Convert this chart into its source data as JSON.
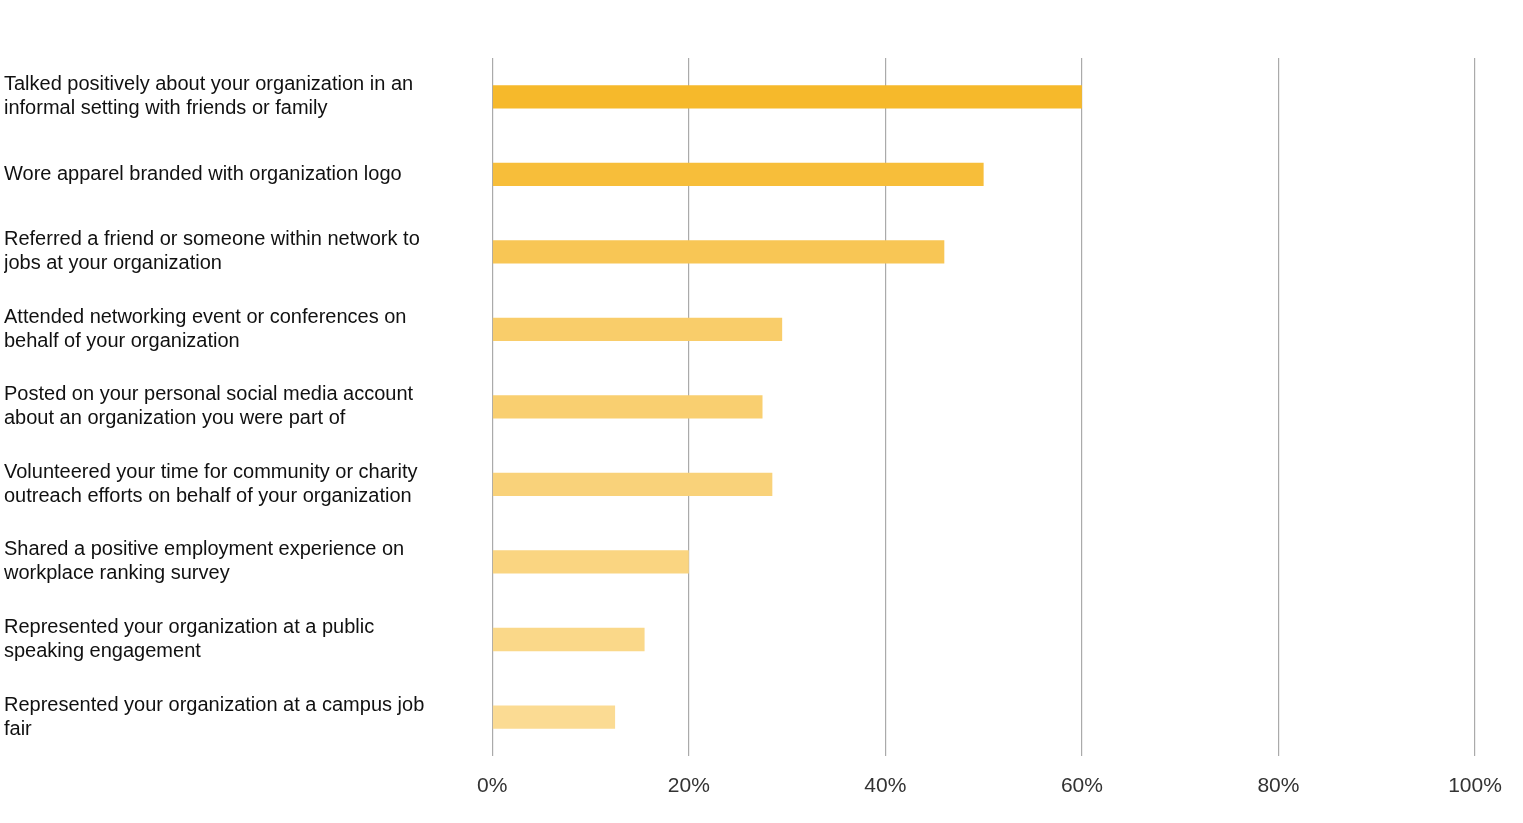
{
  "chart_data": {
    "type": "bar",
    "orientation": "horizontal",
    "categories": [
      "Talked positively about your organization in an informal setting with friends or family",
      "Wore apparel branded with organization logo",
      "Referred a friend or someone within network to jobs at your organization",
      "Attended networking event or conferences on behalf of your organization",
      "Posted on your personal social media account about an organization you were part of",
      "Volunteered your time for community or charity outreach efforts on behalf of your organization",
      "Shared a positive employment experience on workplace ranking survey",
      "Represented your organization at a public speaking engagement",
      "Represented your organization at a campus job fair"
    ],
    "values": [
      60,
      50,
      46,
      29.5,
      27.5,
      28.5,
      20,
      15.5,
      12.5
    ],
    "colors": [
      "#f6b92b",
      "#f7be3a",
      "#f8c655",
      "#f9cd6a",
      "#f9cf70",
      "#f9d27a",
      "#fad581",
      "#fad889",
      "#fbdb93"
    ],
    "xlim": [
      0,
      100
    ],
    "xticks": [
      {
        "value": 0,
        "label": "0%"
      },
      {
        "value": 20,
        "label": "20%"
      },
      {
        "value": 40,
        "label": "40%"
      },
      {
        "value": 60,
        "label": "60%"
      },
      {
        "value": 80,
        "label": "80%"
      },
      {
        "value": 100,
        "label": "100%"
      }
    ],
    "grid": "x",
    "legend": false
  }
}
